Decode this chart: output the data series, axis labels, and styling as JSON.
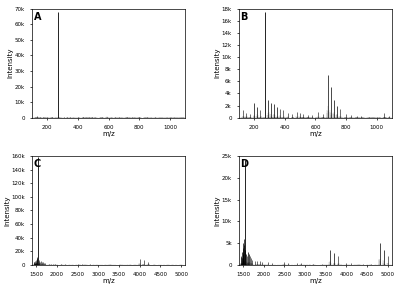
{
  "panels": [
    "A",
    "B",
    "C",
    "D"
  ],
  "background_color": "#ffffff",
  "panel_label_fontsize": 7,
  "axis_label_fontsize": 5,
  "tick_fontsize": 4,
  "xlabel": "m/z",
  "ylabel": "Intensity",
  "panels_config": {
    "A": {
      "xlim": [
        100,
        1100
      ],
      "ylim": [
        0,
        70000
      ],
      "yticks": [
        0,
        10000,
        20000,
        30000,
        40000,
        50000,
        60000,
        70000
      ],
      "dominant_peak_x": 270,
      "dominant_peak_y": 68000,
      "secondary_peaks": [
        [
          130,
          800
        ],
        [
          150,
          600
        ],
        [
          170,
          400
        ],
        [
          200,
          300
        ],
        [
          230,
          250
        ],
        [
          310,
          500
        ],
        [
          330,
          400
        ],
        [
          350,
          300
        ],
        [
          400,
          250
        ],
        [
          430,
          200
        ],
        [
          470,
          180
        ],
        [
          490,
          150
        ],
        [
          560,
          600
        ],
        [
          590,
          500
        ],
        [
          640,
          200
        ],
        [
          670,
          150
        ],
        [
          720,
          400
        ],
        [
          750,
          350
        ],
        [
          800,
          200
        ],
        [
          850,
          180
        ],
        [
          900,
          150
        ],
        [
          950,
          120
        ],
        [
          1000,
          100
        ],
        [
          1050,
          80
        ]
      ]
    },
    "B": {
      "xlim": [
        100,
        1100
      ],
      "ylim": [
        0,
        18000
      ],
      "yticks": [
        0,
        2000,
        4000,
        6000,
        8000,
        10000,
        12000,
        14000,
        16000,
        18000
      ],
      "dominant_peak_x": 270,
      "dominant_peak_y": 17500,
      "secondary_peaks": [
        [
          130,
          1200
        ],
        [
          150,
          800
        ],
        [
          170,
          600
        ],
        [
          200,
          2500
        ],
        [
          220,
          1800
        ],
        [
          240,
          1200
        ],
        [
          290,
          3000
        ],
        [
          310,
          2500
        ],
        [
          330,
          2200
        ],
        [
          350,
          1800
        ],
        [
          370,
          1500
        ],
        [
          390,
          1200
        ],
        [
          420,
          800
        ],
        [
          450,
          600
        ],
        [
          480,
          1000
        ],
        [
          500,
          800
        ],
        [
          520,
          600
        ],
        [
          550,
          500
        ],
        [
          580,
          400
        ],
        [
          620,
          900
        ],
        [
          650,
          600
        ],
        [
          680,
          7000
        ],
        [
          700,
          5000
        ],
        [
          720,
          3000
        ],
        [
          740,
          2000
        ],
        [
          760,
          1500
        ],
        [
          800,
          600
        ],
        [
          830,
          400
        ],
        [
          870,
          300
        ],
        [
          900,
          250
        ],
        [
          950,
          200
        ],
        [
          1000,
          150
        ],
        [
          1050,
          800
        ],
        [
          1080,
          300
        ]
      ]
    },
    "C": {
      "xlim": [
        1400,
        5100
      ],
      "ylim": [
        0,
        160000
      ],
      "yticks": [
        0,
        20000,
        40000,
        60000,
        80000,
        100000,
        120000,
        140000,
        160000
      ],
      "dominant_peak_x": 1540,
      "dominant_peak_y": 158000,
      "secondary_peaks": [
        [
          1450,
          5000
        ],
        [
          1460,
          4000
        ],
        [
          1470,
          3000
        ],
        [
          1480,
          6000
        ],
        [
          1490,
          5000
        ],
        [
          1500,
          8000
        ],
        [
          1510,
          10000
        ],
        [
          1520,
          12000
        ],
        [
          1530,
          9000
        ],
        [
          1560,
          7000
        ],
        [
          1580,
          5000
        ],
        [
          1600,
          4000
        ],
        [
          1620,
          6000
        ],
        [
          1640,
          5000
        ],
        [
          1660,
          4000
        ],
        [
          1700,
          3000
        ],
        [
          1720,
          2500
        ],
        [
          1800,
          2000
        ],
        [
          1850,
          1800
        ],
        [
          1900,
          1500
        ],
        [
          1950,
          1200
        ],
        [
          2100,
          1000
        ],
        [
          2200,
          800
        ],
        [
          2500,
          1200
        ],
        [
          2600,
          900
        ],
        [
          2800,
          700
        ],
        [
          2900,
          600
        ],
        [
          3200,
          500
        ],
        [
          3400,
          400
        ],
        [
          3600,
          300
        ],
        [
          3800,
          250
        ],
        [
          4000,
          9000
        ],
        [
          4100,
          7000
        ],
        [
          4200,
          5000
        ],
        [
          4400,
          200
        ],
        [
          4600,
          180
        ],
        [
          4800,
          150
        ],
        [
          5000,
          120
        ]
      ]
    },
    "D": {
      "xlim": [
        1400,
        5100
      ],
      "ylim": [
        0,
        25000
      ],
      "yticks": [
        0,
        5000,
        10000,
        15000,
        20000,
        25000
      ],
      "dominant_peak_x": 1540,
      "dominant_peak_y": 24000,
      "secondary_peaks": [
        [
          1450,
          2000
        ],
        [
          1460,
          1800
        ],
        [
          1470,
          1500
        ],
        [
          1480,
          3000
        ],
        [
          1490,
          2500
        ],
        [
          1500,
          4000
        ],
        [
          1510,
          5000
        ],
        [
          1520,
          6000
        ],
        [
          1530,
          4500
        ],
        [
          1560,
          3500
        ],
        [
          1580,
          2500
        ],
        [
          1600,
          2000
        ],
        [
          1620,
          3000
        ],
        [
          1640,
          2500
        ],
        [
          1660,
          2000
        ],
        [
          1700,
          1500
        ],
        [
          1720,
          1200
        ],
        [
          1800,
          1000
        ],
        [
          1850,
          900
        ],
        [
          1900,
          800
        ],
        [
          1950,
          700
        ],
        [
          2100,
          600
        ],
        [
          2200,
          500
        ],
        [
          2500,
          700
        ],
        [
          2600,
          500
        ],
        [
          2800,
          400
        ],
        [
          2900,
          350
        ],
        [
          3200,
          300
        ],
        [
          3400,
          250
        ],
        [
          3600,
          3500
        ],
        [
          3700,
          2800
        ],
        [
          3800,
          2000
        ],
        [
          4000,
          400
        ],
        [
          4100,
          350
        ],
        [
          4400,
          200
        ],
        [
          4600,
          180
        ],
        [
          4800,
          5000
        ],
        [
          4900,
          3500
        ],
        [
          5000,
          2000
        ]
      ]
    }
  },
  "noise_seed_A": 42,
  "noise_seed_B": 123,
  "noise_seed_C": 456,
  "noise_seed_D": 789
}
